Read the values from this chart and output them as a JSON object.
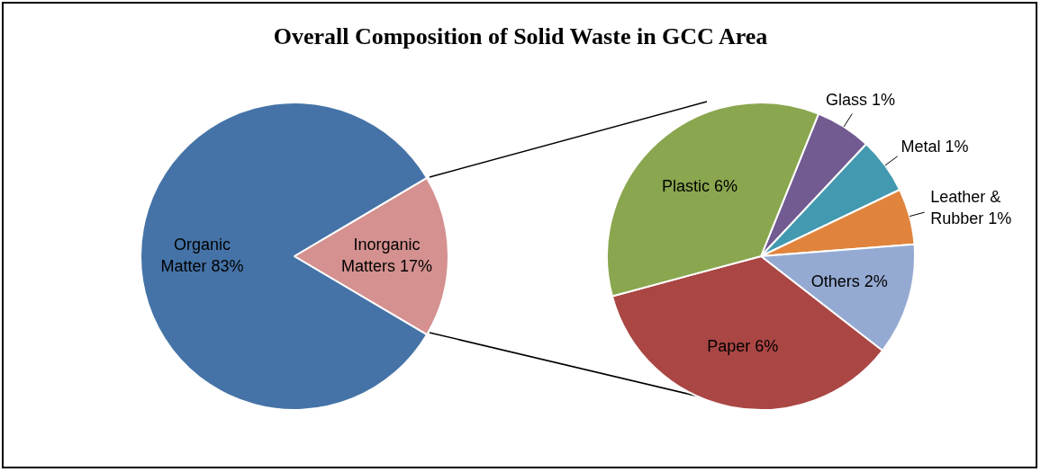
{
  "chart_data": [
    {
      "type": "pie",
      "title": "Overall Composition of Solid Waste in GCC Area",
      "categories": [
        "Organic Matter",
        "Inorganic Matters"
      ],
      "values": [
        83,
        17
      ],
      "value_labels": [
        "83%",
        "17%"
      ],
      "colors": [
        "#4573a7",
        "#d4918f"
      ],
      "legend": false
    },
    {
      "type": "pie",
      "categories": [
        "Glass",
        "Metal",
        "Leather & Rubber",
        "Others",
        "Paper",
        "Plastic"
      ],
      "values": [
        1,
        1,
        1,
        2,
        6,
        6
      ],
      "value_labels": [
        "1%",
        "1%",
        "1%",
        "2%",
        "6%",
        "6%"
      ],
      "colors": [
        "#725b91",
        "#4299b0",
        "#e0843d",
        "#95aad2",
        "#aa4644",
        "#8aa64e"
      ],
      "legend": false
    }
  ]
}
